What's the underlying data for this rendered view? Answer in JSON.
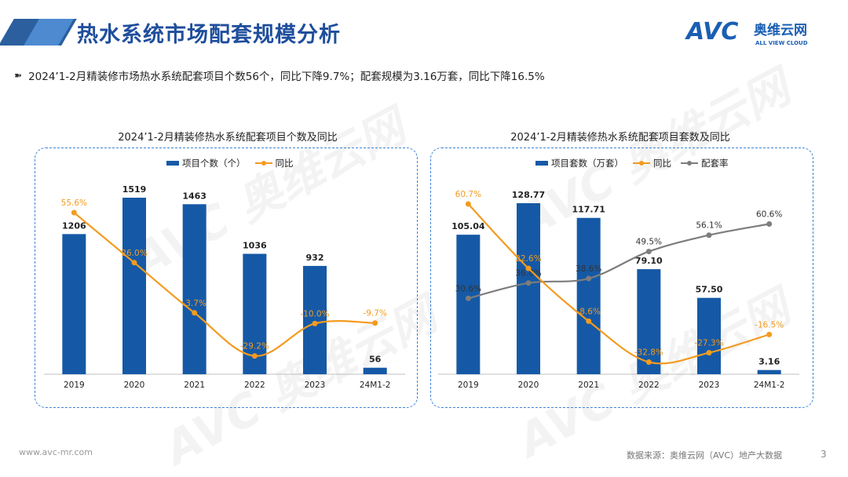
{
  "header": {
    "title": "热水系统市场配套规模分析",
    "logo_text": "AVC",
    "logo_cn": "奥维云网",
    "logo_en": "ALL VIEW CLOUD"
  },
  "summary": "2024’1-2月精装修市场热水系统配套项目个数56个，同比下降9.7%；配套规模为3.16万套，同比下降16.5%",
  "watermark_text": "奥维云网",
  "chart_data": [
    {
      "type": "bar",
      "title": "2024’1-2月精装修热水系统配套项目个数及同比",
      "legend": [
        "项目个数（个）",
        "同比"
      ],
      "categories": [
        "2019",
        "2020",
        "2021",
        "2022",
        "2023",
        "24M1-2"
      ],
      "series": [
        {
          "name": "项目个数（个）",
          "type": "bar",
          "values": [
            1206,
            1519,
            1463,
            1036,
            932,
            56
          ],
          "labels": [
            "1206",
            "1519",
            "1463",
            "1036",
            "932",
            "56"
          ]
        },
        {
          "name": "同比",
          "type": "line",
          "values": [
            55.6,
            26.0,
            -3.7,
            -29.2,
            -10.0,
            -9.7
          ],
          "labels": [
            "55.6%",
            "26.0%",
            "-3.7%",
            "-29.2%",
            "-10.0%",
            "-9.7%"
          ]
        }
      ],
      "ylim": [
        0,
        1600
      ],
      "y2lim": [
        -40,
        70
      ]
    },
    {
      "type": "bar",
      "title": "2024’1-2月精装修热水系统配套项目套数及同比",
      "legend": [
        "项目套数（万套）",
        "同比",
        "配套率"
      ],
      "categories": [
        "2019",
        "2020",
        "2021",
        "2022",
        "2023",
        "24M1-2"
      ],
      "series": [
        {
          "name": "项目套数（万套）",
          "type": "bar",
          "values": [
            105.04,
            128.77,
            117.71,
            79.1,
            57.5,
            3.16
          ],
          "labels": [
            "105.04",
            "128.77",
            "117.71",
            "79.10",
            "57.50",
            "3.16"
          ]
        },
        {
          "name": "同比",
          "type": "line",
          "values": [
            60.7,
            22.6,
            -8.6,
            -32.8,
            -27.3,
            -16.5
          ],
          "labels": [
            "60.7%",
            "22.6%",
            "-8.6%",
            "-32.8%",
            "-27.3%",
            "-16.5%"
          ]
        },
        {
          "name": "配套率",
          "type": "line",
          "values": [
            30.6,
            36.8,
            38.6,
            49.5,
            56.1,
            60.6
          ],
          "labels": [
            "30.6%",
            "36.8%",
            "38.6%",
            "49.5%",
            "56.1%",
            "60.6%"
          ]
        }
      ],
      "ylim": [
        0,
        140
      ],
      "y2lim": [
        -40,
        70
      ],
      "y3lim": [
        0,
        75
      ]
    }
  ],
  "footer": {
    "website": "www.avc-mr.com",
    "source": "数据来源：奥维云网（AVC）地产大数据",
    "page": "3"
  },
  "colors": {
    "bar": "#1559a6",
    "yoy": "#f39b1f",
    "rate": "#7d7d7d",
    "title": "#1f4e9c"
  }
}
